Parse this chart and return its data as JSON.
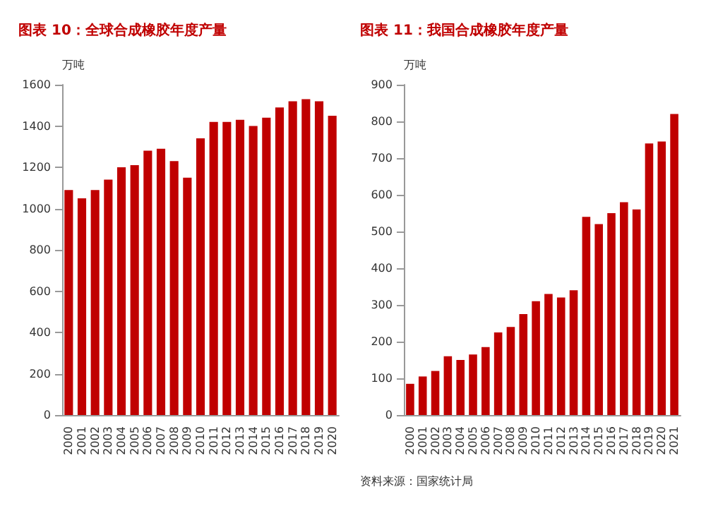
{
  "chart_data": [
    {
      "type": "bar",
      "title": "图表 10：全球合成橡胶年度产量",
      "ylabel": "万吨",
      "categories": [
        "2000",
        "2001",
        "2002",
        "2003",
        "2004",
        "2005",
        "2006",
        "2007",
        "2008",
        "2009",
        "2010",
        "2011",
        "2012",
        "2013",
        "2014",
        "2015",
        "2016",
        "2017",
        "2018",
        "2019",
        "2020"
      ],
      "series": [
        {
          "color": "#c00000",
          "values": [
            1090,
            1050,
            1090,
            1140,
            1200,
            1210,
            1280,
            1290,
            1230,
            1150,
            1340,
            1420,
            1420,
            1430,
            1400,
            1440,
            1490,
            1520,
            1530,
            1520,
            1450
          ]
        }
      ],
      "ylim": [
        0,
        1600
      ],
      "yticks": [
        0,
        200,
        400,
        600,
        800,
        1000,
        1200,
        1400,
        1600
      ],
      "grid": false
    },
    {
      "type": "bar",
      "title": "图表 11：我国合成橡胶年度产量",
      "ylabel": "万吨",
      "categories": [
        "2000",
        "2001",
        "2002",
        "2003",
        "2004",
        "2005",
        "2006",
        "2007",
        "2008",
        "2009",
        "2010",
        "2011",
        "2012",
        "2013",
        "2014",
        "2015",
        "2016",
        "2017",
        "2018",
        "2019",
        "2020",
        "2021"
      ],
      "series": [
        {
          "color": "#c00000",
          "values": [
            85,
            105,
            120,
            160,
            150,
            165,
            185,
            225,
            240,
            275,
            310,
            330,
            320,
            340,
            540,
            520,
            550,
            580,
            560,
            740,
            745,
            820
          ]
        }
      ],
      "ylim": [
        0,
        900
      ],
      "yticks": [
        0,
        100,
        200,
        300,
        400,
        500,
        600,
        700,
        800,
        900
      ],
      "grid": false,
      "annotations": [
        "资料来源：国家统计局"
      ]
    }
  ]
}
